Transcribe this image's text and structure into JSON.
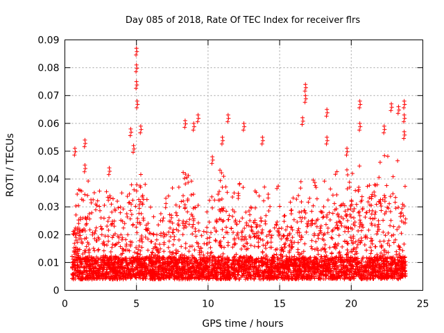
{
  "chart_data": {
    "type": "scatter",
    "title": "Day 085 of 2018, Rate Of TEC Index for receiver flrs",
    "xlabel": "GPS time / hours",
    "ylabel": "ROTI / TECUs",
    "xlim": [
      0,
      25
    ],
    "ylim": [
      0,
      0.09
    ],
    "x_ticks": [
      "0",
      "5",
      "10",
      "15",
      "20",
      "25"
    ],
    "x_tick_values": [
      0,
      5,
      10,
      15,
      20,
      25
    ],
    "y_ticks": [
      "0",
      "0.01",
      "0.02",
      "0.03",
      "0.04",
      "0.05",
      "0.06",
      "0.07",
      "0.08",
      "0.09"
    ],
    "y_tick_values": [
      0,
      0.01,
      0.02,
      0.03,
      0.04,
      0.05,
      0.06,
      0.07,
      0.08,
      0.09
    ],
    "grid": true,
    "marker": "+",
    "color": "#ff0000",
    "x_range_of_data": [
      0.5,
      23.8
    ],
    "series": [
      {
        "name": "ROTI",
        "notable_points": [
          {
            "x": 0.7,
            "y": 0.051
          },
          {
            "x": 1.4,
            "y": 0.054
          },
          {
            "x": 1.4,
            "y": 0.045
          },
          {
            "x": 3.1,
            "y": 0.044
          },
          {
            "x": 4.8,
            "y": 0.052
          },
          {
            "x": 5.0,
            "y": 0.087
          },
          {
            "x": 5.0,
            "y": 0.081
          },
          {
            "x": 5.0,
            "y": 0.075
          },
          {
            "x": 5.05,
            "y": 0.068
          },
          {
            "x": 4.6,
            "y": 0.058
          },
          {
            "x": 5.3,
            "y": 0.059
          },
          {
            "x": 8.4,
            "y": 0.061
          },
          {
            "x": 9.0,
            "y": 0.06
          },
          {
            "x": 9.3,
            "y": 0.063
          },
          {
            "x": 10.3,
            "y": 0.048
          },
          {
            "x": 11.0,
            "y": 0.055
          },
          {
            "x": 11.4,
            "y": 0.063
          },
          {
            "x": 12.5,
            "y": 0.06
          },
          {
            "x": 13.8,
            "y": 0.055
          },
          {
            "x": 16.8,
            "y": 0.074
          },
          {
            "x": 16.8,
            "y": 0.07
          },
          {
            "x": 16.6,
            "y": 0.062
          },
          {
            "x": 18.3,
            "y": 0.065
          },
          {
            "x": 18.3,
            "y": 0.055
          },
          {
            "x": 19.7,
            "y": 0.051
          },
          {
            "x": 20.6,
            "y": 0.068
          },
          {
            "x": 20.6,
            "y": 0.06
          },
          {
            "x": 22.3,
            "y": 0.059
          },
          {
            "x": 22.8,
            "y": 0.067
          },
          {
            "x": 23.3,
            "y": 0.066
          },
          {
            "x": 23.7,
            "y": 0.068
          },
          {
            "x": 23.7,
            "y": 0.063
          },
          {
            "x": 23.7,
            "y": 0.057
          }
        ],
        "envelope": [
          {
            "x": 0.5,
            "y": 0.033
          },
          {
            "x": 1.0,
            "y": 0.037
          },
          {
            "x": 1.5,
            "y": 0.041
          },
          {
            "x": 2.0,
            "y": 0.035
          },
          {
            "x": 2.5,
            "y": 0.038
          },
          {
            "x": 3.0,
            "y": 0.036
          },
          {
            "x": 3.5,
            "y": 0.033
          },
          {
            "x": 4.0,
            "y": 0.037
          },
          {
            "x": 4.5,
            "y": 0.041
          },
          {
            "x": 5.0,
            "y": 0.045
          },
          {
            "x": 5.5,
            "y": 0.044
          },
          {
            "x": 6.0,
            "y": 0.031
          },
          {
            "x": 6.5,
            "y": 0.026
          },
          {
            "x": 7.0,
            "y": 0.035
          },
          {
            "x": 7.5,
            "y": 0.04
          },
          {
            "x": 8.0,
            "y": 0.042
          },
          {
            "x": 8.5,
            "y": 0.045
          },
          {
            "x": 9.0,
            "y": 0.041
          },
          {
            "x": 9.5,
            "y": 0.028
          },
          {
            "x": 10.0,
            "y": 0.031
          },
          {
            "x": 10.5,
            "y": 0.04
          },
          {
            "x": 11.0,
            "y": 0.045
          },
          {
            "x": 11.5,
            "y": 0.042
          },
          {
            "x": 12.0,
            "y": 0.037
          },
          {
            "x": 12.5,
            "y": 0.047
          },
          {
            "x": 13.0,
            "y": 0.04
          },
          {
            "x": 13.5,
            "y": 0.037
          },
          {
            "x": 14.0,
            "y": 0.043
          },
          {
            "x": 14.5,
            "y": 0.035
          },
          {
            "x": 15.0,
            "y": 0.039
          },
          {
            "x": 15.5,
            "y": 0.03
          },
          {
            "x": 16.0,
            "y": 0.035
          },
          {
            "x": 16.5,
            "y": 0.04
          },
          {
            "x": 17.0,
            "y": 0.043
          },
          {
            "x": 17.5,
            "y": 0.039
          },
          {
            "x": 18.0,
            "y": 0.041
          },
          {
            "x": 18.5,
            "y": 0.038
          },
          {
            "x": 19.0,
            "y": 0.043
          },
          {
            "x": 19.5,
            "y": 0.045
          },
          {
            "x": 20.0,
            "y": 0.044
          },
          {
            "x": 20.5,
            "y": 0.046
          },
          {
            "x": 21.0,
            "y": 0.043
          },
          {
            "x": 21.5,
            "y": 0.041
          },
          {
            "x": 22.0,
            "y": 0.047
          },
          {
            "x": 22.5,
            "y": 0.053
          },
          {
            "x": 23.0,
            "y": 0.05
          },
          {
            "x": 23.5,
            "y": 0.043
          },
          {
            "x": 23.8,
            "y": 0.039
          }
        ],
        "baseline_range": [
          0.004,
          0.012
        ]
      }
    ]
  }
}
